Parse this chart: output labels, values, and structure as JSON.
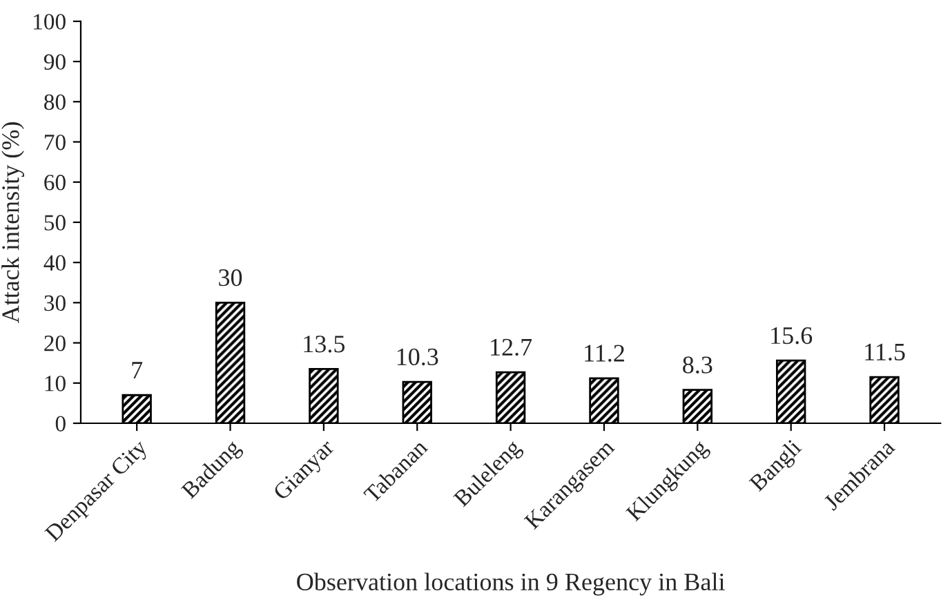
{
  "chart_data": {
    "type": "bar",
    "xlabel": "Observation locations in 9 Regency in Bali",
    "ylabel": "Attack intensity (%)",
    "categories": [
      "Denpasar City",
      "Badung",
      "Gianyar",
      "Tabanan",
      "Buleleng",
      "Karangasem",
      "Klungkung",
      "Bangli",
      "Jembrana"
    ],
    "values": [
      7,
      30,
      13.5,
      10.3,
      12.7,
      11.2,
      8.3,
      15.6,
      11.5
    ],
    "color": "#000000",
    "ylim": [
      0,
      100
    ],
    "yticks": [
      0,
      10,
      20,
      30,
      40,
      50,
      60,
      70,
      80,
      90,
      100
    ],
    "grid": false,
    "data_labels": true
  }
}
